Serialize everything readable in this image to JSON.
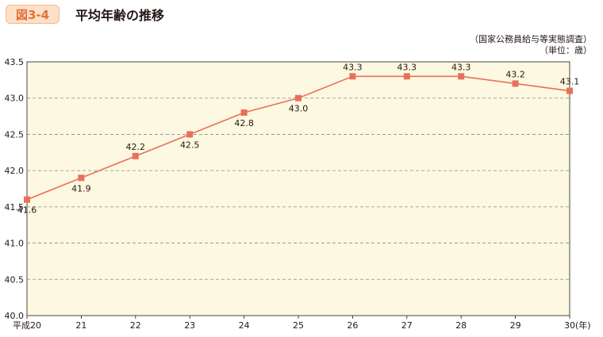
{
  "figure": {
    "badge": "図3-4",
    "title": "平均年齢の推移",
    "source_note": "（国家公務員給与等実態調査）",
    "unit_note": "（単位：歳）"
  },
  "colors": {
    "plot_bg": "#fdf8e1",
    "line": "#e9705a",
    "marker": "#e9705a",
    "grid": "#8c8c8c",
    "badge_text": "#e4703a",
    "badge_bg": "#fde0c8"
  },
  "chart_data": {
    "type": "line",
    "categories": [
      "平成20",
      "21",
      "22",
      "23",
      "24",
      "25",
      "26",
      "27",
      "28",
      "29",
      "30"
    ],
    "x_unit": "(年)",
    "series": [
      {
        "values": [
          41.6,
          41.9,
          42.2,
          42.5,
          42.8,
          43.0,
          43.3,
          43.3,
          43.3,
          43.2,
          43.1
        ]
      }
    ],
    "data_labels": [
      "41.6",
      "41.9",
      "42.2",
      "42.5",
      "42.8",
      "43.0",
      "43.3",
      "43.3",
      "43.3",
      "43.2",
      "43.1"
    ],
    "y_ticks": [
      "40.0",
      "40.5",
      "41.0",
      "41.5",
      "42.0",
      "42.5",
      "43.0",
      "43.5"
    ],
    "ylim": [
      40.0,
      43.5
    ],
    "grid": true,
    "grid_style": "dashed-horizontal",
    "label_positions": [
      "below",
      "below",
      "above",
      "below",
      "below",
      "below",
      "above",
      "above",
      "above",
      "above",
      "above"
    ]
  }
}
